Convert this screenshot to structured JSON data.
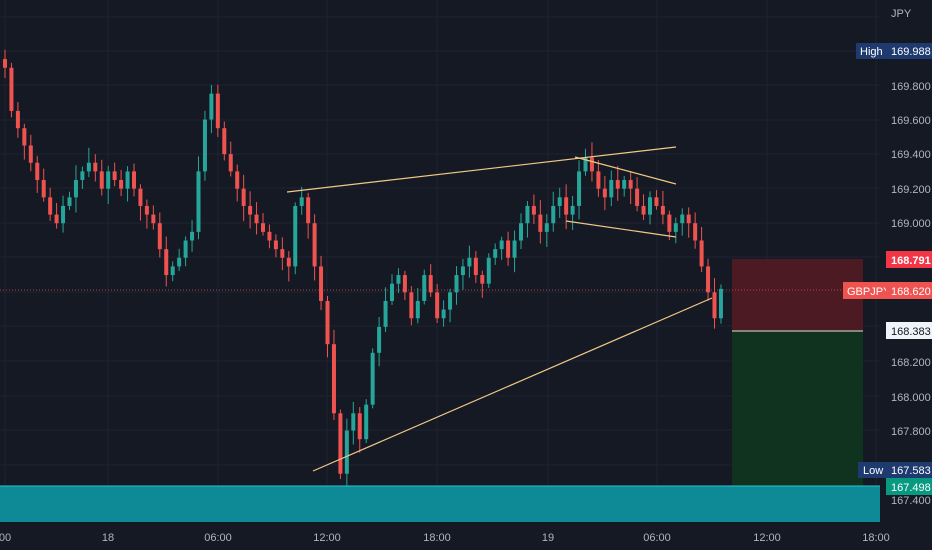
{
  "currency_label": "JPY",
  "symbol": "GBPJPY",
  "colors": {
    "background": "#151924",
    "up": "#26a69a",
    "down": "#ef5350",
    "grid": "#1f2330",
    "axis_text": "#b2b5be",
    "trendline": "#f0c987",
    "stop_zone": "#4b1a22",
    "target_zone": "#10331f",
    "support_zone": "#0e8a96",
    "stop_badge": "#f23645",
    "entry_badge": "#f0f3fa",
    "target_badge": "#089981",
    "high_low_badge": "#1e3a6e"
  },
  "price_axis": {
    "ticks": [
      "169.800",
      "169.600",
      "169.400",
      "169.200",
      "169.000",
      "168.200",
      "168.000",
      "167.800",
      "167.400"
    ]
  },
  "time_axis": {
    "ticks": [
      "00",
      "18",
      "06:00",
      "12:00",
      "18:00",
      "19",
      "06:00",
      "12:00",
      "18:00"
    ]
  },
  "badges": {
    "high": {
      "label": "High",
      "value": "169.988"
    },
    "stop": {
      "value": "168.791"
    },
    "current": {
      "label": "GBPJPY",
      "value": "168.620"
    },
    "entry": {
      "value": "168.383"
    },
    "low": {
      "label": "Low",
      "value": "167.583"
    },
    "target": {
      "value": "167.498"
    }
  },
  "chart_data": {
    "type": "candlestick",
    "symbol": "GBPJPY",
    "last_price": 168.62,
    "session_high": 169.988,
    "session_low": 167.583,
    "position": {
      "side": "short",
      "stop": 168.791,
      "entry": 168.383,
      "target": 167.498
    },
    "support_zone": {
      "from": 167.3,
      "to": 167.498
    },
    "trendlines": [
      {
        "from": {
          "t": 47,
          "p": 169.18
        },
        "to": {
          "t": 108,
          "p": 169.44
        }
      },
      {
        "from": {
          "t": 92,
          "p": 169.38
        },
        "to": {
          "t": 108,
          "p": 169.23
        }
      },
      {
        "from": {
          "t": 90,
          "p": 169.02
        },
        "to": {
          "t": 108,
          "p": 168.93
        }
      },
      {
        "from": {
          "t": 52,
          "p": 167.6
        },
        "to": {
          "t": 113,
          "p": 168.56
        }
      }
    ],
    "close_series": [
      169.9,
      169.65,
      169.55,
      169.45,
      169.35,
      169.25,
      169.15,
      169.05,
      169.0,
      169.1,
      169.15,
      169.25,
      169.3,
      169.35,
      169.3,
      169.2,
      169.3,
      169.25,
      169.2,
      169.3,
      169.2,
      169.1,
      169.05,
      169.0,
      168.85,
      168.7,
      168.75,
      168.8,
      168.9,
      168.95,
      169.3,
      169.6,
      169.75,
      169.55,
      169.4,
      169.3,
      169.2,
      169.1,
      169.05,
      169.0,
      168.95,
      168.9,
      168.85,
      168.8,
      168.75,
      169.1,
      169.15,
      169.0,
      168.75,
      168.55,
      168.3,
      167.9,
      167.55,
      167.8,
      167.9,
      167.75,
      167.95,
      168.25,
      168.4,
      168.55,
      168.65,
      168.7,
      168.6,
      168.45,
      168.55,
      168.7,
      168.6,
      168.45,
      168.5,
      168.6,
      168.7,
      168.75,
      168.8,
      168.7,
      168.65,
      168.8,
      168.85,
      168.9,
      168.8,
      168.9,
      169.0,
      169.1,
      169.05,
      168.95,
      169.0,
      169.1,
      169.15,
      169.05,
      169.1,
      169.3,
      169.38,
      169.3,
      169.2,
      169.15,
      169.25,
      169.2,
      169.25,
      169.2,
      169.1,
      169.05,
      169.15,
      169.1,
      169.05,
      168.95,
      169.0,
      169.05,
      169.0,
      168.9,
      168.75,
      168.6,
      168.45,
      168.62
    ]
  }
}
